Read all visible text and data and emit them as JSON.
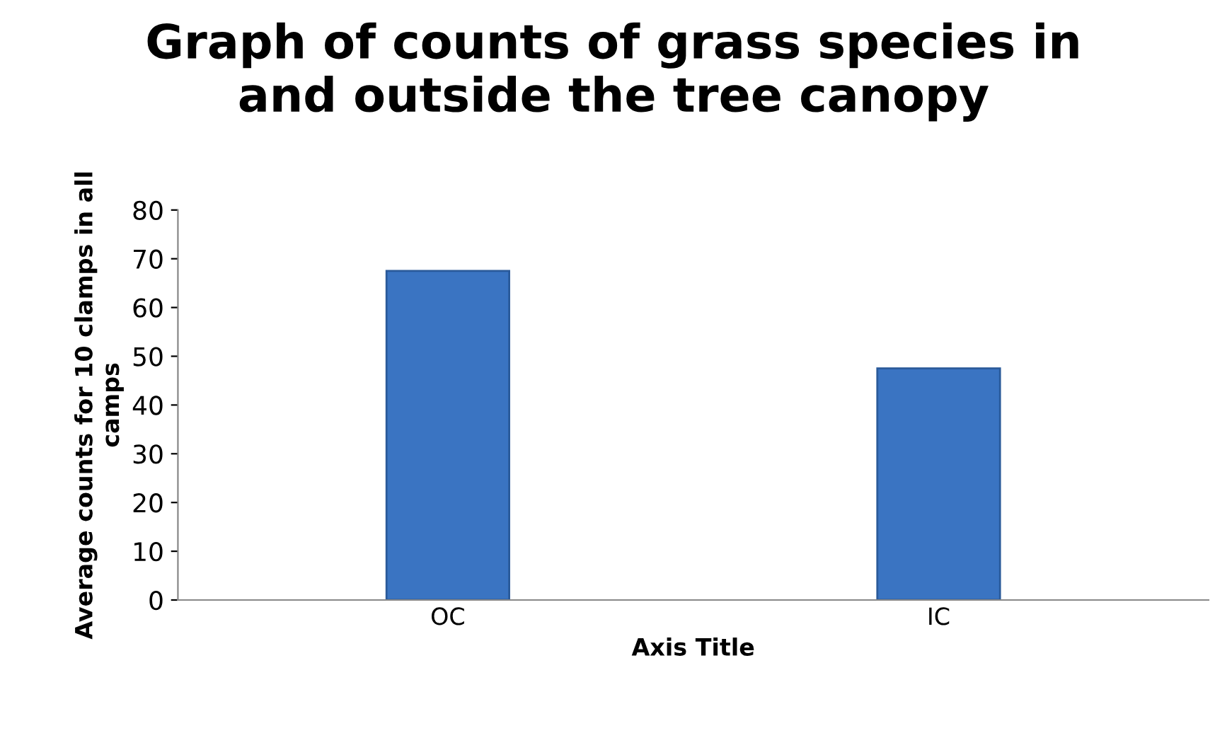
{
  "chart_data": {
    "type": "bar",
    "title": "Graph of counts of grass species in\nand outside the tree canopy",
    "xlabel": "Axis Title",
    "ylabel": "Average counts for 10 clamps in all\ncamps",
    "categories": [
      "OC",
      "IC"
    ],
    "values": [
      67.5,
      47.5
    ],
    "color": "#3a74c2",
    "ylim": [
      0,
      80
    ],
    "yticks": [
      0,
      10,
      20,
      30,
      40,
      50,
      60,
      70,
      80
    ],
    "grid": false,
    "legend": false
  }
}
